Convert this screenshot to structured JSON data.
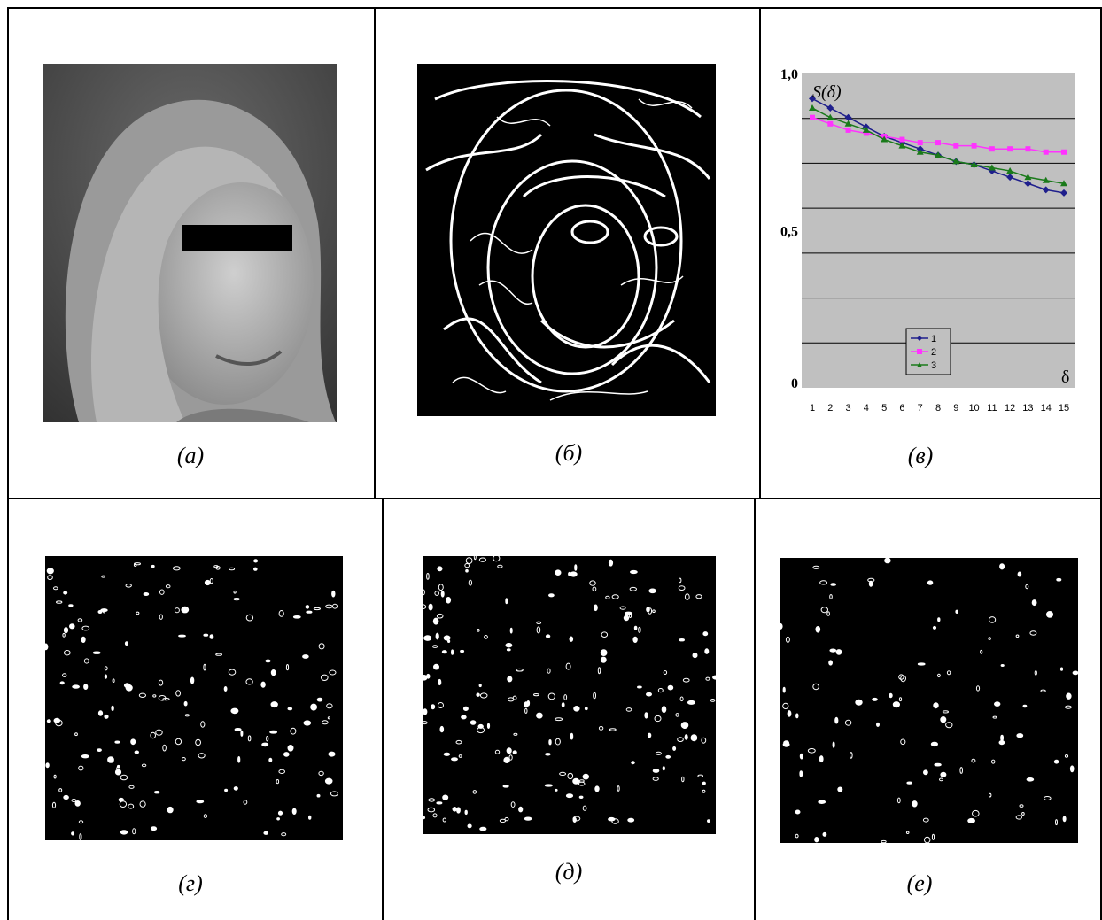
{
  "figure": {
    "captions": {
      "a": "(а)",
      "b": "(б)",
      "v": "(в)",
      "g": "(г)",
      "d": "(д)",
      "e": "(е)"
    }
  },
  "chart_data": {
    "type": "line",
    "ylabel": "S(δ)",
    "xlabel": "δ",
    "y_tick_labels": [
      "1,0",
      "0,5",
      "0"
    ],
    "ylim": [
      0,
      1
    ],
    "grid": true,
    "legend_position": "bottom-center",
    "x": [
      1,
      2,
      3,
      4,
      5,
      6,
      7,
      8,
      9,
      10,
      11,
      12,
      13,
      14,
      15
    ],
    "series": [
      {
        "name": "1",
        "color": "#1f1f8c",
        "marker": "diamond",
        "values": [
          0.92,
          0.89,
          0.86,
          0.83,
          0.8,
          0.78,
          0.76,
          0.74,
          0.72,
          0.71,
          0.69,
          0.67,
          0.65,
          0.63,
          0.62
        ]
      },
      {
        "name": "2",
        "color": "#ff33ff",
        "marker": "square",
        "values": [
          0.86,
          0.84,
          0.82,
          0.81,
          0.8,
          0.79,
          0.78,
          0.78,
          0.77,
          0.77,
          0.76,
          0.76,
          0.76,
          0.75,
          0.75
        ]
      },
      {
        "name": "3",
        "color": "#1a7a1a",
        "marker": "triangle",
        "values": [
          0.89,
          0.86,
          0.84,
          0.82,
          0.79,
          0.77,
          0.75,
          0.74,
          0.72,
          0.71,
          0.7,
          0.69,
          0.67,
          0.66,
          0.65
        ]
      }
    ]
  }
}
